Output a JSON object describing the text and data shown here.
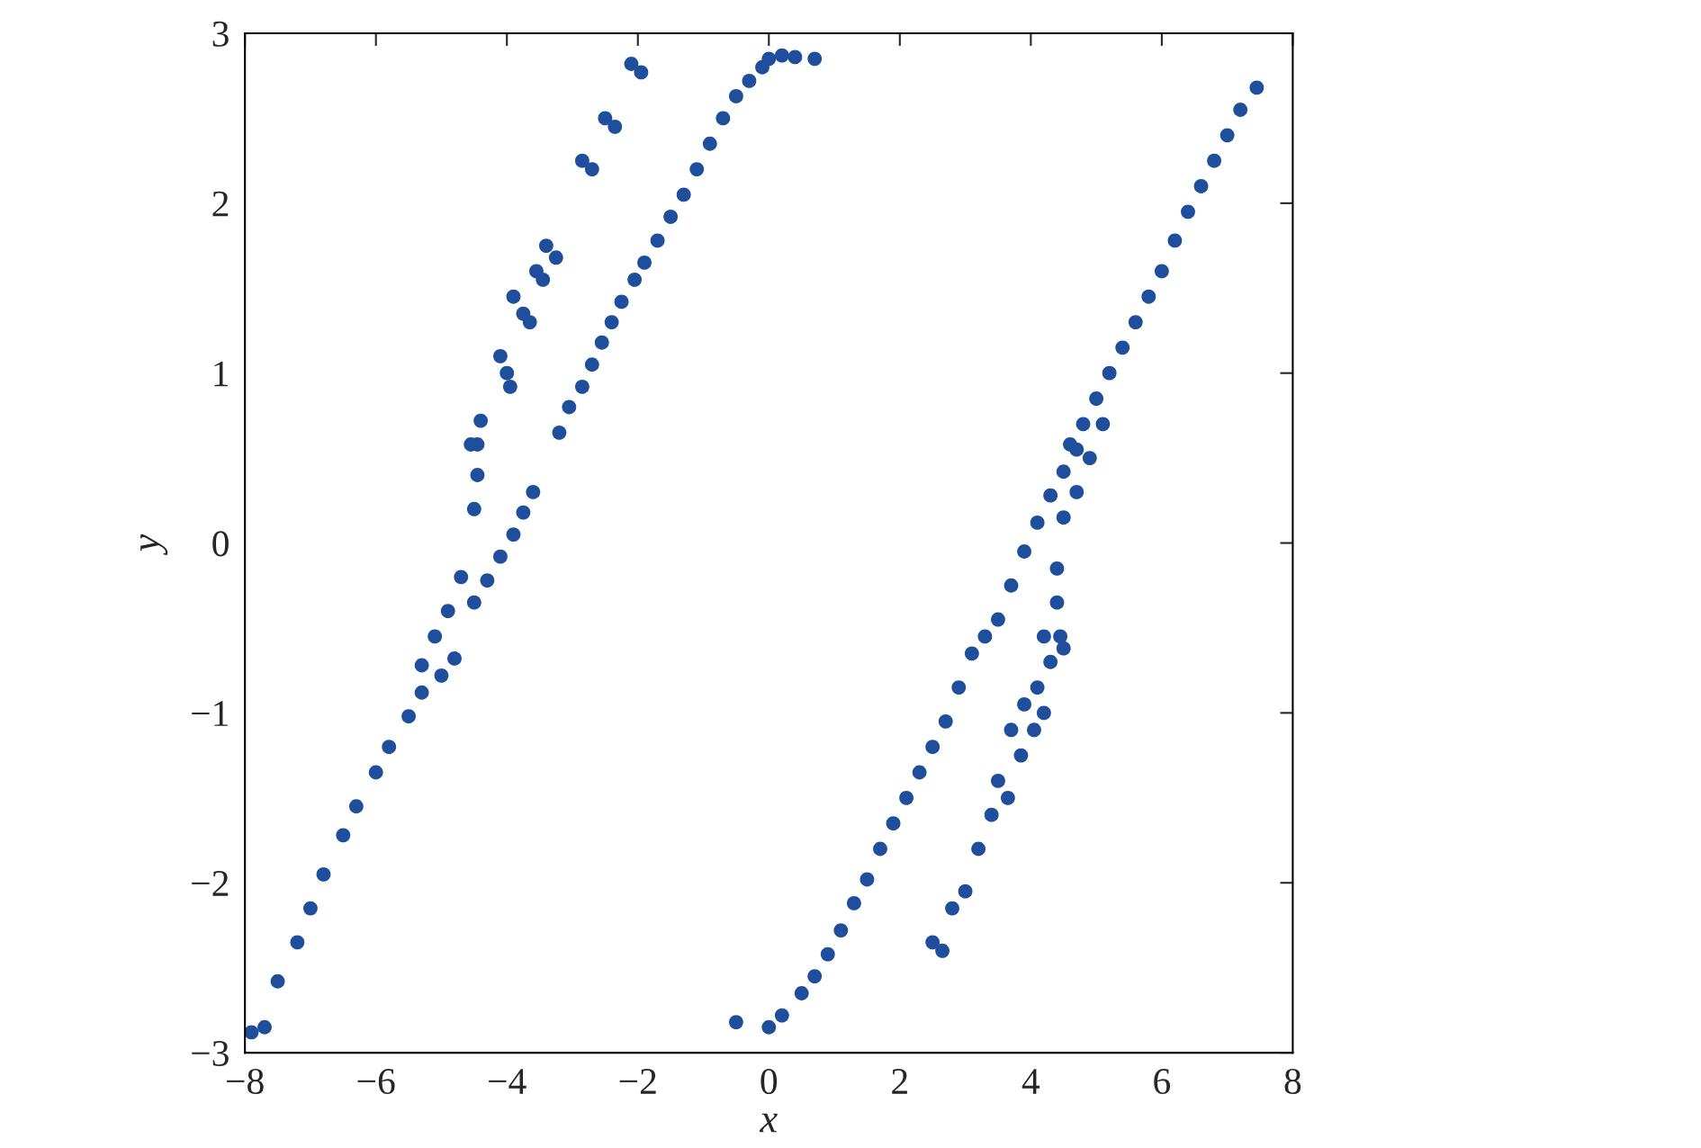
{
  "chart_data": {
    "type": "scatter",
    "xlabel": "x",
    "ylabel": "y",
    "xlim": [
      -8,
      8
    ],
    "ylim": [
      -3,
      3
    ],
    "xticks": [
      {
        "value": -8,
        "label": "−8"
      },
      {
        "value": -6,
        "label": "−6"
      },
      {
        "value": -4,
        "label": "−4"
      },
      {
        "value": -2,
        "label": "−2"
      },
      0,
      2,
      4,
      6,
      8
    ],
    "yticks": [
      {
        "value": -3,
        "label": "−3"
      },
      {
        "value": -2,
        "label": "−2"
      },
      {
        "value": -1,
        "label": "−1"
      },
      0,
      1,
      2,
      3
    ],
    "grid": false,
    "marker": "circle",
    "series": [
      {
        "color": "#1f4e9c",
        "x": [
          -7.9,
          -7.7,
          -7.5,
          -7.2,
          -7.0,
          -6.8,
          -6.5,
          -6.3,
          -6.0,
          -5.8,
          -5.5,
          -5.3,
          -5.0,
          -4.8,
          -5.3,
          -5.1,
          -4.9,
          -4.7,
          -4.5,
          -4.3,
          -4.1,
          -3.9,
          -3.75,
          -3.6,
          -4.5,
          -4.45,
          -4.45,
          -4.4,
          -4.55,
          -4.1,
          -4.0,
          -3.95,
          -3.9,
          -3.75,
          -3.65,
          -3.55,
          -3.45,
          -3.4,
          -3.25,
          -2.85,
          -2.7,
          -2.5,
          -2.35,
          -2.1,
          -1.95,
          -3.2,
          -3.05,
          -2.85,
          -2.7,
          -2.55,
          -2.4,
          -2.25,
          -2.05,
          -1.9,
          -1.7,
          -1.5,
          -1.3,
          -1.1,
          -0.9,
          -0.7,
          -0.5,
          -0.3,
          -0.1,
          0.0,
          0.2,
          0.4,
          0.7,
          -0.5,
          0.0,
          0.2,
          0.5,
          0.7,
          0.9,
          1.1,
          1.3,
          1.5,
          1.7,
          1.9,
          2.1,
          2.3,
          2.5,
          2.7,
          2.9,
          3.1,
          3.3,
          3.5,
          3.7,
          3.9,
          4.1,
          4.3,
          4.5,
          4.7,
          4.6,
          4.8,
          5.0,
          5.2,
          5.4,
          5.6,
          5.8,
          6.0,
          6.2,
          6.4,
          6.6,
          6.8,
          7.0,
          7.2,
          7.45,
          4.5,
          4.7,
          4.9,
          5.1,
          4.4,
          4.4,
          4.45,
          4.5,
          4.2,
          4.3,
          4.1,
          4.2,
          3.9,
          4.05,
          3.7,
          3.85,
          3.5,
          3.65,
          3.0,
          3.2,
          3.4,
          2.5,
          2.65,
          2.8
        ],
        "values": [
          -2.88,
          -2.85,
          -2.58,
          -2.35,
          -2.15,
          -1.95,
          -1.72,
          -1.55,
          -1.35,
          -1.2,
          -1.02,
          -0.88,
          -0.78,
          -0.68,
          -0.72,
          -0.55,
          -0.4,
          -0.2,
          -0.35,
          -0.22,
          -0.08,
          0.05,
          0.18,
          0.3,
          0.2,
          0.4,
          0.58,
          0.72,
          0.58,
          1.1,
          1.0,
          0.92,
          1.45,
          1.35,
          1.3,
          1.6,
          1.55,
          1.75,
          1.68,
          2.25,
          2.2,
          2.5,
          2.45,
          2.82,
          2.77,
          0.65,
          0.8,
          0.92,
          1.05,
          1.18,
          1.3,
          1.42,
          1.55,
          1.65,
          1.78,
          1.92,
          2.05,
          2.2,
          2.35,
          2.5,
          2.63,
          2.72,
          2.8,
          2.85,
          2.87,
          2.86,
          2.85,
          -2.82,
          -2.85,
          -2.78,
          -2.65,
          -2.55,
          -2.42,
          -2.28,
          -2.12,
          -1.98,
          -1.8,
          -1.65,
          -1.5,
          -1.35,
          -1.2,
          -1.05,
          -0.85,
          -0.65,
          -0.55,
          -0.45,
          -0.25,
          -0.05,
          0.12,
          0.28,
          0.42,
          0.55,
          0.58,
          0.7,
          0.85,
          1.0,
          1.15,
          1.3,
          1.45,
          1.6,
          1.78,
          1.95,
          2.1,
          2.25,
          2.4,
          2.55,
          2.68,
          0.15,
          0.3,
          0.5,
          0.7,
          -0.15,
          -0.35,
          -0.55,
          -0.62,
          -0.55,
          -0.7,
          -0.85,
          -1.0,
          -0.95,
          -1.1,
          -1.1,
          -1.25,
          -1.4,
          -1.5,
          -2.05,
          -1.8,
          -1.6,
          -2.35,
          -2.4,
          -2.15
        ]
      }
    ]
  }
}
